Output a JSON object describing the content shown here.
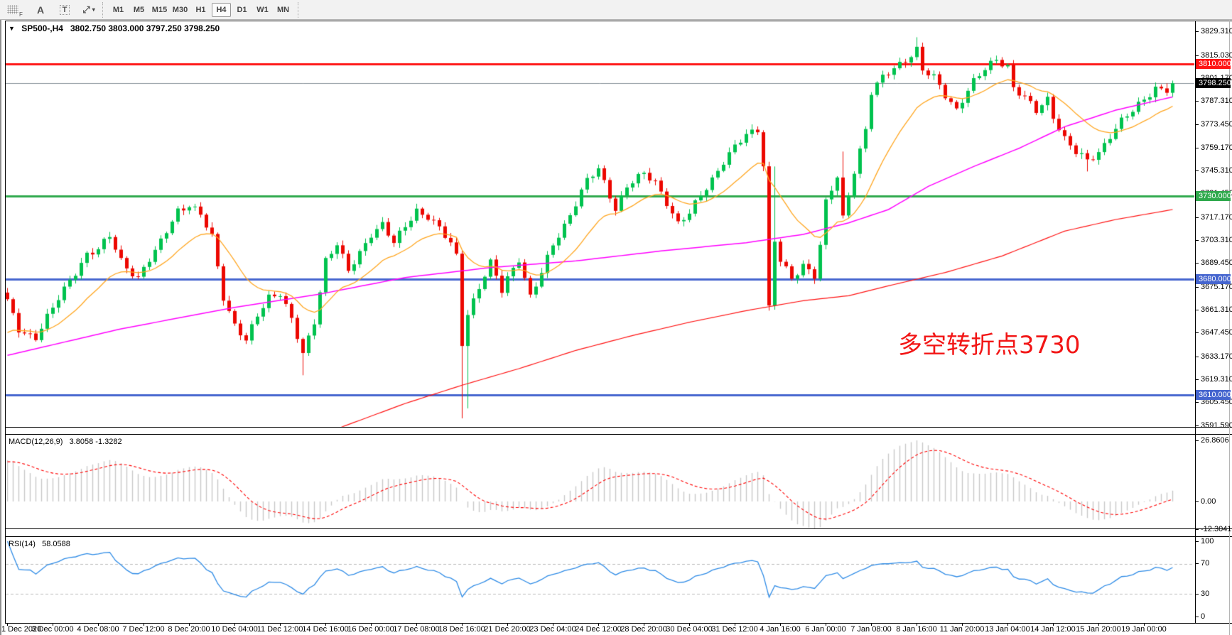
{
  "toolbar": {
    "tools": [
      {
        "name": "grid-f-tool",
        "label": "F"
      },
      {
        "name": "text-label-tool",
        "label": "A"
      },
      {
        "name": "text-box-tool",
        "label": "T"
      },
      {
        "name": "arrows-tool",
        "label": "⤢",
        "caret": "▾"
      }
    ],
    "timeframes": [
      "M1",
      "M5",
      "M15",
      "M30",
      "H1",
      "H4",
      "D1",
      "W1",
      "MN"
    ],
    "active_timeframe": "H4"
  },
  "chart": {
    "dropdown": "▼",
    "symbol_label": "SP500-,H4",
    "ohlc": "3802.750 3803.000 3797.250 3798.250",
    "annotation": {
      "text": "多空转折点3730",
      "color": "#f21515"
    }
  },
  "price_axis": {
    "ticks": [
      "3829.310",
      "3815.030",
      "3801.170",
      "3787.310",
      "3773.450",
      "3759.170",
      "3745.310",
      "3731.450",
      "3717.170",
      "3703.310",
      "3689.450",
      "3675.170",
      "3661.310",
      "3647.450",
      "3633.170",
      "3619.310",
      "3605.450",
      "3591.590"
    ],
    "levels": [
      {
        "label": "3810.000",
        "price": 3810,
        "color": "#ff1414"
      },
      {
        "label": "3730.000",
        "price": 3730,
        "color": "#2fa94d"
      },
      {
        "label": "3680.000",
        "price": 3680,
        "color": "#4565cf"
      },
      {
        "label": "3610.000",
        "price": 3610,
        "color": "#4565cf"
      }
    ],
    "current": {
      "label": "3798.250",
      "price": 3798.25,
      "line_color": "#828c95",
      "badge_bg": "#000000"
    }
  },
  "macd_panel": {
    "label": "MACD(12,26,9)",
    "values": "3.8058 -1.3282",
    "axis": [
      {
        "label": "26.8606",
        "value": 26.8606
      },
      {
        "label": "0.00",
        "value": 0
      },
      {
        "label": "-12.3041",
        "value": -12.3041
      }
    ]
  },
  "rsi_panel": {
    "label": "RSI(14)",
    "value": "58.0588",
    "axis": [
      {
        "label": "100",
        "value": 100
      },
      {
        "label": "70",
        "value": 70
      },
      {
        "label": "30",
        "value": 30
      },
      {
        "label": "0",
        "value": 0
      }
    ],
    "levels": [
      70,
      30
    ]
  },
  "time_axis": [
    "1 Dec 2020",
    "3 Dec 00:00",
    "4 Dec 08:00",
    "7 Dec 12:00",
    "8 Dec 20:00",
    "10 Dec 04:00",
    "11 Dec 12:00",
    "14 Dec 16:00",
    "16 Dec 00:00",
    "17 Dec 08:00",
    "18 Dec 16:00",
    "21 Dec 20:00",
    "23 Dec 04:00",
    "24 Dec 12:00",
    "28 Dec 20:00",
    "30 Dec 04:00",
    "31 Dec 12:00",
    "4 Jan 16:00",
    "6 Jan 00:00",
    "7 Jan 08:00",
    "8 Jan 16:00",
    "11 Jan 20:00",
    "13 Jan 04:00",
    "14 Jan 12:00",
    "15 Jan 20:00",
    "19 Jan 00:00"
  ],
  "chart_data": {
    "type": "candlestick",
    "symbol": "SP500-",
    "timeframe": "H4",
    "bars": 206,
    "last_close": 3798.25,
    "ylim": [
      3591.59,
      3829.31
    ],
    "close_path_anchors": [
      [
        0,
        3666
      ],
      [
        2,
        3650
      ],
      [
        5,
        3645
      ],
      [
        8,
        3662
      ],
      [
        11,
        3680
      ],
      [
        14,
        3695
      ],
      [
        16,
        3697
      ],
      [
        18,
        3706
      ],
      [
        20,
        3692
      ],
      [
        23,
        3680
      ],
      [
        24,
        3686
      ],
      [
        26,
        3696
      ],
      [
        28,
        3710
      ],
      [
        30,
        3722
      ],
      [
        32,
        3724
      ],
      [
        34,
        3718
      ],
      [
        36,
        3706
      ],
      [
        38,
        3670
      ],
      [
        40,
        3652
      ],
      [
        42,
        3642
      ],
      [
        44,
        3658
      ],
      [
        46,
        3670
      ],
      [
        48,
        3672
      ],
      [
        50,
        3655
      ],
      [
        52,
        3634
      ],
      [
        54,
        3655
      ],
      [
        56,
        3692
      ],
      [
        58,
        3701
      ],
      [
        60,
        3684
      ],
      [
        62,
        3696
      ],
      [
        64,
        3708
      ],
      [
        66,
        3713
      ],
      [
        68,
        3701
      ],
      [
        70,
        3712
      ],
      [
        72,
        3722
      ],
      [
        74,
        3718
      ],
      [
        76,
        3710
      ],
      [
        78,
        3701
      ],
      [
        79,
        3694
      ],
      [
        80,
        3642
      ],
      [
        81,
        3660
      ],
      [
        83,
        3675
      ],
      [
        85,
        3689
      ],
      [
        87,
        3673
      ],
      [
        88,
        3681
      ],
      [
        90,
        3693
      ],
      [
        92,
        3669
      ],
      [
        94,
        3683
      ],
      [
        96,
        3701
      ],
      [
        98,
        3713
      ],
      [
        100,
        3726
      ],
      [
        102,
        3739
      ],
      [
        104,
        3746
      ],
      [
        106,
        3731
      ],
      [
        107,
        3723
      ],
      [
        109,
        3736
      ],
      [
        112,
        3743
      ],
      [
        114,
        3739
      ],
      [
        116,
        3727
      ],
      [
        118,
        3713
      ],
      [
        120,
        3719
      ],
      [
        122,
        3731
      ],
      [
        124,
        3741
      ],
      [
        126,
        3751
      ],
      [
        128,
        3759
      ],
      [
        130,
        3767
      ],
      [
        132,
        3771
      ],
      [
        133,
        3750
      ],
      [
        134,
        3663
      ],
      [
        135,
        3703
      ],
      [
        136,
        3691
      ],
      [
        138,
        3679
      ],
      [
        140,
        3689
      ],
      [
        142,
        3683
      ],
      [
        143,
        3701
      ],
      [
        144,
        3726
      ],
      [
        146,
        3741
      ],
      [
        147,
        3716
      ],
      [
        149,
        3746
      ],
      [
        151,
        3771
      ],
      [
        152,
        3793
      ],
      [
        154,
        3801
      ],
      [
        156,
        3807
      ],
      [
        158,
        3813
      ],
      [
        160,
        3819
      ],
      [
        161,
        3806
      ],
      [
        163,
        3801
      ],
      [
        165,
        3791
      ],
      [
        167,
        3783
      ],
      [
        168,
        3789
      ],
      [
        170,
        3799
      ],
      [
        172,
        3806
      ],
      [
        174,
        3813
      ],
      [
        176,
        3809
      ],
      [
        177,
        3796
      ],
      [
        179,
        3789
      ],
      [
        181,
        3781
      ],
      [
        183,
        3789
      ],
      [
        184,
        3779
      ],
      [
        186,
        3765
      ],
      [
        188,
        3756
      ],
      [
        190,
        3751
      ],
      [
        192,
        3757
      ],
      [
        194,
        3767
      ],
      [
        196,
        3775
      ],
      [
        198,
        3781
      ],
      [
        200,
        3789
      ],
      [
        202,
        3796
      ],
      [
        204,
        3794
      ],
      [
        205,
        3798.25
      ]
    ],
    "wick_overrides": {
      "52": {
        "low": 3622
      },
      "80": {
        "low": 3596
      },
      "81": {
        "low": 3602
      },
      "134": {
        "low": 3661
      },
      "135": {
        "high": 3748
      },
      "147": {
        "high": 3757
      },
      "160": {
        "high": 3826
      },
      "190": {
        "low": 3745
      }
    },
    "history": {
      "bars": 40,
      "start_price": 3560
    },
    "moving_averages": {
      "fast": {
        "type": "ema",
        "period": 16,
        "color": "#ffa51e"
      },
      "medium": {
        "color": "#ff00ff",
        "anchors": [
          [
            0,
            3634
          ],
          [
            20,
            3650
          ],
          [
            40,
            3663
          ],
          [
            55,
            3671
          ],
          [
            70,
            3681
          ],
          [
            85,
            3687
          ],
          [
            100,
            3691
          ],
          [
            115,
            3697
          ],
          [
            130,
            3702
          ],
          [
            140,
            3707
          ],
          [
            148,
            3714
          ],
          [
            155,
            3722
          ],
          [
            162,
            3736
          ],
          [
            170,
            3748
          ],
          [
            178,
            3759
          ],
          [
            186,
            3772
          ],
          [
            195,
            3782
          ],
          [
            205,
            3790
          ]
        ]
      },
      "slow": {
        "color": "#ff1414",
        "anchors": [
          [
            59,
            3591
          ],
          [
            70,
            3605
          ],
          [
            80,
            3616
          ],
          [
            90,
            3626
          ],
          [
            100,
            3637
          ],
          [
            110,
            3646
          ],
          [
            120,
            3654
          ],
          [
            130,
            3661
          ],
          [
            140,
            3667
          ],
          [
            148,
            3670
          ],
          [
            155,
            3676
          ],
          [
            165,
            3684
          ],
          [
            175,
            3694
          ],
          [
            186,
            3709
          ],
          [
            195,
            3716
          ],
          [
            205,
            3722
          ]
        ]
      }
    },
    "indicators": {
      "macd": {
        "fast": 12,
        "slow": 26,
        "signal": 9,
        "hist_color": "#c8c8c8",
        "signal_color": "#ff0000",
        "max": 26.8606,
        "min": -12.3041
      },
      "rsi": {
        "period": 14,
        "color": "#2e8be6",
        "levels_color": "#bdbdbd"
      }
    },
    "colors": {
      "bull": "#00c24e",
      "bear": "#ec0700",
      "background": "#ffffff"
    }
  }
}
